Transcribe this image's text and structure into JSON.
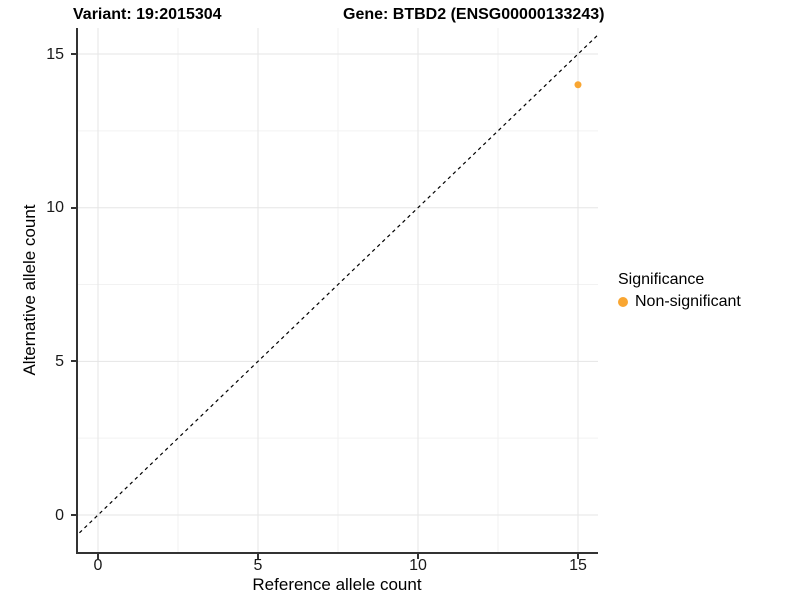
{
  "titles": {
    "variant": "Variant: 19:2015304",
    "gene": "Gene: BTBD2 (ENSG00000133243)"
  },
  "axes": {
    "x": {
      "label": "Reference allele count",
      "ticks": [
        "0",
        "5",
        "10",
        "15"
      ]
    },
    "y": {
      "label": "Alternative allele count",
      "ticks": [
        "0",
        "5",
        "10",
        "15"
      ]
    }
  },
  "legend": {
    "title": "Significance",
    "items": [
      {
        "label": "Non-significant",
        "color": "#F9A632"
      }
    ]
  },
  "colors": {
    "point_orange": "#F9A632",
    "axis_line": "#333333",
    "grid_major": "#e5e5e5",
    "grid_minor": "#f2f2f2",
    "reference_line": "#000000",
    "background": "#ffffff"
  },
  "chart_data": {
    "type": "scatter",
    "title": "Variant: 19:2015304    Gene: BTBD2 (ENSG00000133243)",
    "xlabel": "Reference allele count",
    "ylabel": "Alternative allele count",
    "xlim": [
      -0.65,
      16.25
    ],
    "ylim": [
      -1.2,
      15.9
    ],
    "xticks": [
      0,
      5,
      10,
      15
    ],
    "yticks": [
      0,
      5,
      10,
      15
    ],
    "grid": true,
    "legend_position": "right",
    "legend_title": "Significance",
    "series": [
      {
        "name": "Non-significant",
        "color": "#F9A632",
        "points": [
          [
            15,
            14
          ]
        ]
      }
    ],
    "reference_line": {
      "kind": "identity y=x",
      "style": "dashed",
      "color": "#000000"
    }
  }
}
